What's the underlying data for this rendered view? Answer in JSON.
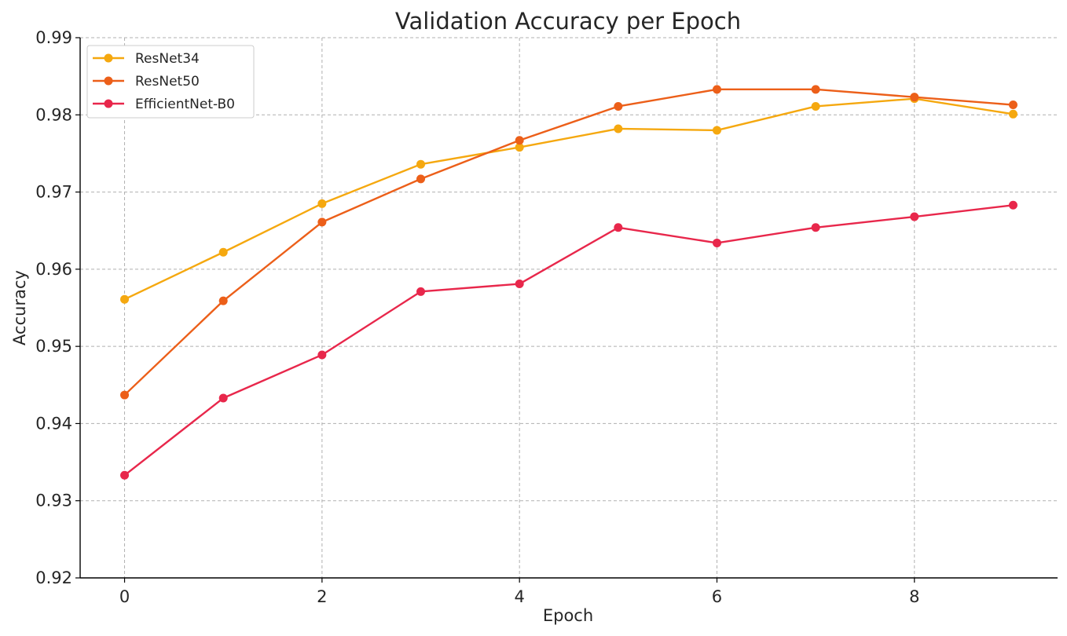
{
  "chart_data": {
    "type": "line",
    "title": "Validation Accuracy per Epoch",
    "xlabel": "Epoch",
    "ylabel": "Accuracy",
    "x": [
      0,
      1,
      2,
      3,
      4,
      5,
      6,
      7,
      8,
      9
    ],
    "xlim": [
      -0.45,
      9.45
    ],
    "ylim": [
      0.92,
      0.99
    ],
    "xticks": [
      0,
      2,
      4,
      6,
      8
    ],
    "xtick_labels": [
      "0",
      "2",
      "4",
      "6",
      "8"
    ],
    "yticks": [
      0.92,
      0.93,
      0.94,
      0.95,
      0.96,
      0.97,
      0.98,
      0.99
    ],
    "ytick_labels": [
      "0.92",
      "0.93",
      "0.94",
      "0.95",
      "0.96",
      "0.97",
      "0.98",
      "0.99"
    ],
    "grid": true,
    "legend_position": "top-left",
    "series": [
      {
        "name": "ResNet34",
        "color": "#f5a80f",
        "values": [
          0.9561,
          0.9622,
          0.9685,
          0.9736,
          0.9758,
          0.9782,
          0.978,
          0.9811,
          0.9821,
          0.9801
        ]
      },
      {
        "name": "ResNet50",
        "color": "#ec5f19",
        "values": [
          0.9437,
          0.9559,
          0.9661,
          0.9717,
          0.9767,
          0.9811,
          0.9833,
          0.9833,
          0.9823,
          0.9813
        ]
      },
      {
        "name": "EfficientNet-B0",
        "color": "#e8274b",
        "values": [
          0.9333,
          0.9433,
          0.9489,
          0.9571,
          0.9581,
          0.9654,
          0.9634,
          0.9654,
          0.9668,
          0.9683
        ]
      }
    ]
  }
}
